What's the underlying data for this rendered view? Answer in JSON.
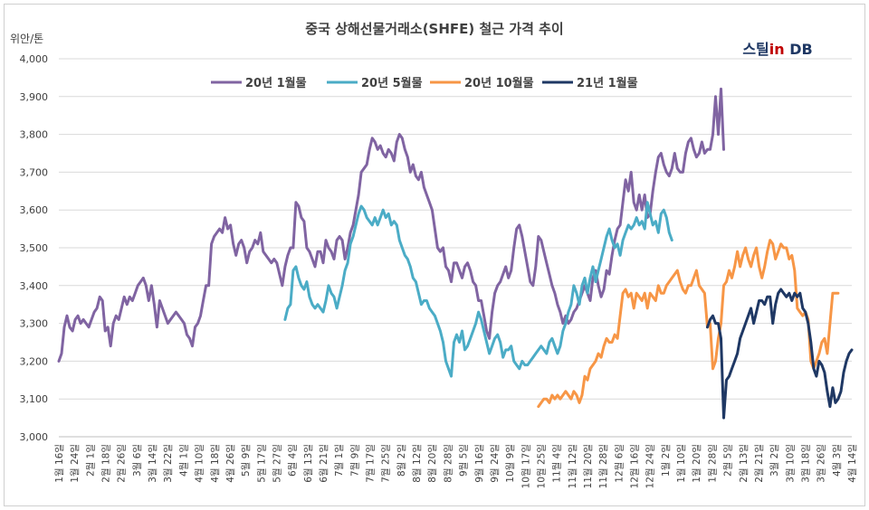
{
  "chart_data": {
    "type": "line",
    "title": "중국 상해선물거래소(SHFE) 철근 가격 추이",
    "ylabel": "위안/톤",
    "ylim": [
      3000,
      4000
    ],
    "yticks": [
      "3,000",
      "3,100",
      "3,200",
      "3,300",
      "3,400",
      "3,500",
      "3,600",
      "3,700",
      "3,800",
      "3,900",
      "4,000"
    ],
    "x_tick_labels": [
      "1월 16일",
      "1월 24일",
      "2월 1일",
      "2월 18일",
      "2월 26일",
      "3월 6일",
      "3월 14일",
      "3월 22일",
      "4월 1일",
      "4월 10일",
      "4월 18일",
      "4월 26일",
      "5월 9일",
      "5월 17일",
      "5월 27일",
      "6월 4일",
      "6월 13일",
      "6월 21일",
      "7월 1일",
      "7월 9일",
      "7월 17일",
      "7월 25일",
      "8월 2일",
      "8월 12일",
      "8월 20일",
      "8월 28일",
      "9월 5일",
      "9월 16일",
      "9월 24일",
      "10월 9일",
      "10월 17일",
      "10월 25일",
      "11월 4일",
      "11월 12일",
      "11월 20일",
      "11월 28일",
      "12월 6일",
      "12월 16일",
      "12월 24일",
      "1월 2일",
      "1월 10일",
      "1월 20일",
      "1월 28일",
      "2월 5일",
      "2월 13일",
      "2월 21일",
      "3월 2일",
      "3월 10일",
      "3월 18일",
      "3월 26일",
      "4월 3일",
      "4월 14일"
    ],
    "grid": true,
    "legend_position": "top",
    "series": [
      {
        "name": "20년 1월물",
        "color": "#8064a2",
        "start_index": 0,
        "values": [
          3200,
          3220,
          3290,
          3320,
          3290,
          3280,
          3310,
          3320,
          3300,
          3310,
          3300,
          3290,
          3310,
          3330,
          3340,
          3370,
          3360,
          3280,
          3290,
          3240,
          3300,
          3320,
          3310,
          3340,
          3370,
          3350,
          3370,
          3360,
          3380,
          3400,
          3410,
          3420,
          3400,
          3360,
          3400,
          3350,
          3290,
          3360,
          3340,
          3320,
          3300,
          3310,
          3320,
          3330,
          3320,
          3310,
          3300,
          3270,
          3260,
          3240,
          3290,
          3300,
          3320,
          3360,
          3400,
          3400,
          3510,
          3530,
          3540,
          3550,
          3540,
          3580,
          3550,
          3560,
          3510,
          3480,
          3510,
          3520,
          3500,
          3460,
          3490,
          3500,
          3520,
          3510,
          3540,
          3490,
          3480,
          3470,
          3460,
          3470,
          3460,
          3430,
          3400,
          3450,
          3480,
          3500,
          3500,
          3620,
          3610,
          3580,
          3570,
          3500,
          3490,
          3470,
          3450,
          3490,
          3490,
          3460,
          3520,
          3500,
          3490,
          3470,
          3520,
          3530,
          3520,
          3470,
          3500,
          3540,
          3560,
          3600,
          3640,
          3700,
          3710,
          3720,
          3760,
          3790,
          3780,
          3760,
          3770,
          3750,
          3740,
          3760,
          3750,
          3730,
          3780,
          3800,
          3790,
          3760,
          3740,
          3700,
          3720,
          3690,
          3680,
          3700,
          3660,
          3640,
          3620,
          3600,
          3550,
          3500,
          3490,
          3500,
          3450,
          3440,
          3410,
          3460,
          3460,
          3440,
          3420,
          3450,
          3460,
          3440,
          3410,
          3400,
          3360,
          3360,
          3320,
          3280,
          3260,
          3330,
          3380,
          3400,
          3410,
          3430,
          3450,
          3420,
          3440,
          3500,
          3550,
          3560,
          3530,
          3490,
          3450,
          3410,
          3400,
          3450,
          3530,
          3520,
          3490,
          3460,
          3430,
          3400,
          3380,
          3350,
          3330,
          3300,
          3320,
          3300,
          3310,
          3330,
          3340,
          3360,
          3380,
          3400,
          3380,
          3360,
          3420,
          3440,
          3400,
          3370,
          3390,
          3440,
          3430,
          3480,
          3520,
          3550,
          3560,
          3620,
          3680,
          3650,
          3700,
          3620,
          3600,
          3640,
          3600,
          3640,
          3580,
          3590,
          3650,
          3700,
          3740,
          3750,
          3720,
          3700,
          3690,
          3710,
          3750,
          3710,
          3700,
          3700,
          3750,
          3780,
          3790,
          3760,
          3740,
          3750,
          3780,
          3750,
          3760,
          3760,
          3800,
          3900,
          3800,
          3920,
          3760
        ]
      },
      {
        "name": "20년 5월물",
        "color": "#4bacc6",
        "start_index": 83,
        "values": [
          3310,
          3340,
          3350,
          3440,
          3450,
          3420,
          3400,
          3390,
          3410,
          3370,
          3350,
          3340,
          3350,
          3340,
          3330,
          3360,
          3400,
          3380,
          3370,
          3340,
          3370,
          3400,
          3440,
          3460,
          3510,
          3530,
          3560,
          3590,
          3610,
          3600,
          3580,
          3570,
          3560,
          3580,
          3560,
          3580,
          3600,
          3580,
          3590,
          3560,
          3570,
          3560,
          3520,
          3500,
          3480,
          3470,
          3450,
          3420,
          3410,
          3380,
          3350,
          3360,
          3360,
          3340,
          3330,
          3320,
          3300,
          3280,
          3250,
          3200,
          3180,
          3160,
          3250,
          3270,
          3250,
          3280,
          3230,
          3240,
          3260,
          3280,
          3300,
          3330,
          3310,
          3280,
          3250,
          3220,
          3240,
          3260,
          3270,
          3250,
          3210,
          3230,
          3230,
          3240,
          3200,
          3190,
          3180,
          3200,
          3190,
          3190,
          3200,
          3210,
          3220,
          3230,
          3240,
          3230,
          3220,
          3250,
          3260,
          3240,
          3220,
          3240,
          3280,
          3300,
          3330,
          3350,
          3400,
          3380,
          3350,
          3400,
          3420,
          3380,
          3420,
          3450,
          3410,
          3440,
          3470,
          3500,
          3530,
          3550,
          3520,
          3500,
          3510,
          3480,
          3520,
          3540,
          3560,
          3550,
          3560,
          3580,
          3560,
          3570,
          3550,
          3620,
          3590,
          3560,
          3570,
          3540,
          3590,
          3600,
          3580,
          3540,
          3520
        ]
      },
      {
        "name": "20년 10월물",
        "color": "#f79646",
        "start_index": 176,
        "values": [
          3080,
          3090,
          3100,
          3100,
          3090,
          3110,
          3100,
          3110,
          3100,
          3110,
          3120,
          3110,
          3100,
          3120,
          3110,
          3090,
          3110,
          3160,
          3150,
          3180,
          3190,
          3200,
          3220,
          3210,
          3240,
          3260,
          3250,
          3250,
          3270,
          3260,
          3320,
          3380,
          3390,
          3370,
          3380,
          3340,
          3380,
          3370,
          3360,
          3380,
          3340,
          3380,
          3370,
          3360,
          3400,
          3380,
          3380,
          3400,
          3410,
          3420,
          3430,
          3440,
          3410,
          3390,
          3380,
          3400,
          3400,
          3420,
          3440,
          3400,
          3390,
          3380,
          3290,
          3300,
          3180,
          3200,
          3260,
          3300,
          3400,
          3410,
          3440,
          3420,
          3450,
          3490,
          3450,
          3480,
          3500,
          3470,
          3450,
          3480,
          3500,
          3450,
          3420,
          3450,
          3490,
          3520,
          3510,
          3470,
          3490,
          3510,
          3500,
          3500,
          3470,
          3480,
          3440,
          3340,
          3330,
          3320,
          3330,
          3310,
          3200,
          3180,
          3200,
          3220,
          3250,
          3260,
          3220,
          3300,
          3380,
          3380,
          3380
        ]
      },
      {
        "name": "21년 1월물",
        "color": "#1f3864",
        "start_index": 238,
        "values": [
          3290,
          3310,
          3320,
          3300,
          3300,
          3260,
          3050,
          3150,
          3160,
          3180,
          3200,
          3220,
          3260,
          3280,
          3300,
          3320,
          3340,
          3300,
          3330,
          3360,
          3360,
          3350,
          3370,
          3370,
          3300,
          3350,
          3380,
          3390,
          3380,
          3370,
          3380,
          3360,
          3380,
          3370,
          3380,
          3340,
          3330,
          3300,
          3250,
          3180,
          3160,
          3200,
          3190,
          3170,
          3120,
          3080,
          3130,
          3090,
          3100,
          3120,
          3170,
          3200,
          3220,
          3230
        ]
      }
    ]
  },
  "brand": {
    "part1": "스틸",
    "part2": "in",
    "part3": " DB"
  },
  "colors": {
    "grid": "#d9d9d9",
    "text": "#404040"
  }
}
